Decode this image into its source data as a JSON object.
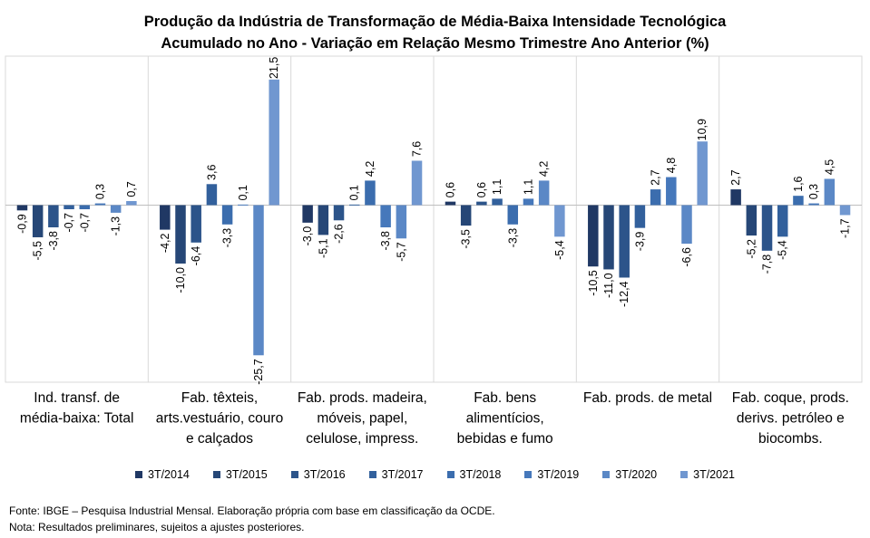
{
  "chart_data": {
    "type": "bar",
    "title": [
      "Produção da Indústria de Transformação de Média-Baixa Intensidade Tecnológica",
      "Acumulado no Ano - Variação em Relação Mesmo Trimestre Ano Anterior (%)"
    ],
    "categories": [
      [
        "Ind. transf. de",
        "média-baixa: Total"
      ],
      [
        "Fab. têxteis,",
        "arts.vestuário, couro",
        "e calçados"
      ],
      [
        "Fab. prods. madeira,",
        "móveis, papel,",
        "celulose, impress."
      ],
      [
        "Fab. bens",
        "alimentícios,",
        "bebidas e fumo"
      ],
      [
        "Fab. prods. de metal"
      ],
      [
        "Fab. coque, prods.",
        "derivs. petróleo e",
        "biocombs."
      ]
    ],
    "series": [
      {
        "name": "3T/2014",
        "color": "#203864",
        "values": [
          -0.9,
          -4.2,
          -3.0,
          0.6,
          -10.5,
          2.7
        ]
      },
      {
        "name": "3T/2015",
        "color": "#264777",
        "values": [
          -5.5,
          -10.0,
          -5.1,
          -3.5,
          -11.0,
          -5.2
        ]
      },
      {
        "name": "3T/2016",
        "color": "#2c548a",
        "values": [
          -3.8,
          -6.4,
          -2.6,
          0.6,
          -12.4,
          -7.8
        ]
      },
      {
        "name": "3T/2017",
        "color": "#32609c",
        "values": [
          -0.7,
          3.6,
          0.1,
          1.1,
          -3.9,
          -5.4
        ]
      },
      {
        "name": "3T/2018",
        "color": "#3b6dae",
        "values": [
          -0.7,
          -3.3,
          4.2,
          -3.3,
          2.7,
          1.6
        ]
      },
      {
        "name": "3T/2019",
        "color": "#4678bb",
        "values": [
          0.3,
          0.1,
          -3.8,
          1.1,
          4.8,
          0.3
        ]
      },
      {
        "name": "3T/2020",
        "color": "#5b88c6",
        "values": [
          -1.3,
          -25.7,
          -5.7,
          4.2,
          -6.6,
          4.5
        ]
      },
      {
        "name": "3T/2021",
        "color": "#7097d0",
        "values": [
          0.7,
          21.5,
          7.6,
          -5.4,
          10.9,
          -1.7
        ]
      }
    ],
    "ylim": [
      -30,
      30
    ],
    "grid": false,
    "legend_position": "bottom",
    "data_labels": true,
    "decimal_separator": ","
  },
  "footer": {
    "source": "Fonte: IBGE – Pesquisa Industrial Mensal. Elaboração própria com base em classificação da OCDE.",
    "note": "Nota: Resultados preliminares, sujeitos a ajustes posteriores."
  }
}
